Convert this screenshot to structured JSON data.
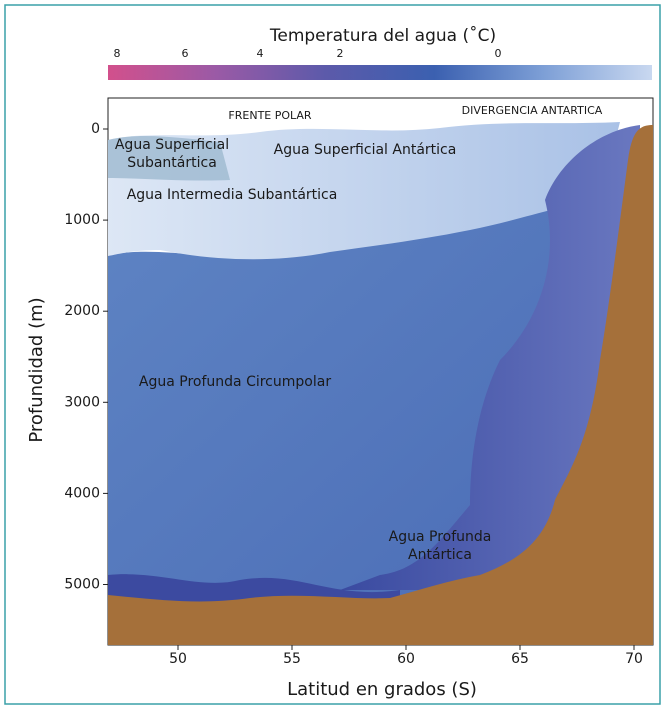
{
  "colorbar": {
    "title": "Temperatura del agua (˚C)",
    "ticks": [
      8,
      6,
      4,
      2,
      0
    ]
  },
  "axes": {
    "x_label": "Latitud en grados (S)",
    "y_label": "Profundidad (m)",
    "x_ticks": [
      50,
      55,
      60,
      65,
      70
    ],
    "y_ticks": [
      0,
      1000,
      2000,
      3000,
      4000,
      5000
    ]
  },
  "labels": {
    "frente_polar": "FRENTE POLAR",
    "divergencia": "DIVERGENCIA ANTARTICA",
    "superficial_sub": [
      "Agua Superficial",
      "Subantártica"
    ],
    "superficial_ant": "Agua Superficial Antártica",
    "intermedia": "Agua Intermedia Subantártica",
    "circumpolar": "Agua Profunda Circumpolar",
    "profunda_ant": [
      "Agua Profunda",
      "Antártica"
    ]
  }
}
